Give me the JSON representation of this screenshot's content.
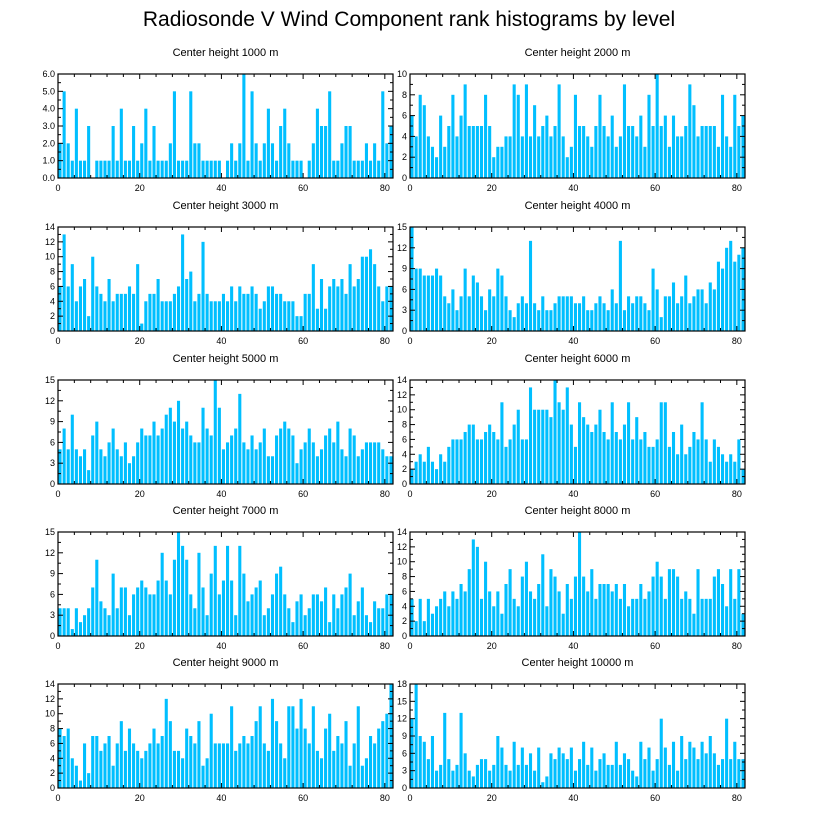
{
  "title": "Radiosonde V Wind Component rank histograms by level",
  "bar_color": "#00bfff",
  "chart_data": [
    {
      "type": "bar",
      "title": "Center height 1000 m",
      "xlim": [
        0,
        82
      ],
      "ylim": [
        0,
        6
      ],
      "xticks": [
        {
          "v": 0,
          "label": "0"
        },
        {
          "v": 20,
          "label": "20"
        },
        {
          "v": 40,
          "label": "40"
        },
        {
          "v": 60,
          "label": "60"
        },
        {
          "v": 80,
          "label": "80"
        }
      ],
      "yticks": [
        {
          "v": 0,
          "label": "0.0"
        },
        {
          "v": 1,
          "label": "1.0"
        },
        {
          "v": 2,
          "label": "2.0"
        },
        {
          "v": 3,
          "label": "3.0"
        },
        {
          "v": 4,
          "label": "4.0"
        },
        {
          "v": 5,
          "label": "5.0"
        },
        {
          "v": 6,
          "label": "6.0"
        }
      ],
      "values": [
        2,
        5,
        2,
        1,
        4,
        1,
        1,
        3,
        0,
        1,
        1,
        1,
        1,
        3,
        1,
        4,
        1,
        1,
        3,
        1,
        2,
        4,
        1,
        3,
        1,
        1,
        1,
        2,
        5,
        1,
        1,
        1,
        5,
        2,
        2,
        1,
        1,
        1,
        1,
        1,
        0,
        1,
        2,
        1,
        2,
        6,
        1,
        5,
        2,
        1,
        2,
        4,
        2,
        1,
        3,
        4,
        2,
        1,
        1,
        1,
        0,
        1,
        2,
        4,
        3,
        3,
        5,
        1,
        1,
        2,
        3,
        3,
        1,
        1,
        1,
        2,
        1,
        2,
        1,
        5,
        2,
        3
      ]
    },
    {
      "type": "bar",
      "title": "Center height 2000 m",
      "xlim": [
        0,
        82
      ],
      "ylim": [
        0,
        10
      ],
      "xticks": [
        {
          "v": 0,
          "label": "0"
        },
        {
          "v": 20,
          "label": "20"
        },
        {
          "v": 40,
          "label": "40"
        },
        {
          "v": 60,
          "label": "60"
        },
        {
          "v": 80,
          "label": "80"
        }
      ],
      "yticks": [
        {
          "v": 0,
          "label": "0"
        },
        {
          "v": 2,
          "label": "2"
        },
        {
          "v": 4,
          "label": "4"
        },
        {
          "v": 6,
          "label": "6"
        },
        {
          "v": 8,
          "label": "8"
        },
        {
          "v": 10,
          "label": "10"
        }
      ],
      "values": [
        6,
        4,
        8,
        7,
        4,
        3,
        2,
        6,
        3,
        5,
        8,
        4,
        6,
        9,
        5,
        5,
        5,
        5,
        8,
        5,
        2,
        3,
        3,
        4,
        4,
        9,
        8,
        4,
        9,
        4,
        7,
        4,
        5,
        6,
        4,
        5,
        9,
        4,
        2,
        3,
        8,
        5,
        5,
        4,
        3,
        5,
        8,
        5,
        4,
        6,
        3,
        4,
        9,
        5,
        5,
        4,
        6,
        3,
        8,
        5,
        10,
        5,
        6,
        3,
        6,
        4,
        4,
        5,
        9,
        7,
        4,
        5,
        5,
        5,
        5,
        3,
        8,
        4,
        3,
        8,
        5,
        6
      ]
    },
    {
      "type": "bar",
      "title": "Center height 3000 m",
      "xlim": [
        0,
        82
      ],
      "ylim": [
        0,
        14
      ],
      "xticks": [
        {
          "v": 0,
          "label": "0"
        },
        {
          "v": 20,
          "label": "20"
        },
        {
          "v": 40,
          "label": "40"
        },
        {
          "v": 60,
          "label": "60"
        },
        {
          "v": 80,
          "label": "80"
        }
      ],
      "yticks": [
        {
          "v": 0,
          "label": "0"
        },
        {
          "v": 2,
          "label": "2"
        },
        {
          "v": 4,
          "label": "4"
        },
        {
          "v": 6,
          "label": "6"
        },
        {
          "v": 8,
          "label": "8"
        },
        {
          "v": 10,
          "label": "10"
        },
        {
          "v": 12,
          "label": "12"
        },
        {
          "v": 14,
          "label": "14"
        }
      ],
      "values": [
        6,
        13,
        6,
        9,
        4,
        6,
        7,
        2,
        10,
        6,
        5,
        4,
        7,
        4,
        5,
        5,
        5,
        6,
        5,
        9,
        1,
        4,
        5,
        5,
        7,
        4,
        4,
        4,
        5,
        6,
        13,
        7,
        8,
        4,
        5,
        12,
        5,
        4,
        4,
        4,
        5,
        4,
        6,
        4,
        6,
        5,
        5,
        6,
        5,
        3,
        4,
        6,
        6,
        5,
        5,
        4,
        4,
        4,
        2,
        2,
        5,
        5,
        9,
        3,
        7,
        3,
        6,
        7,
        6,
        7,
        5,
        9,
        6,
        7,
        10,
        10,
        11,
        9,
        6,
        4,
        6,
        6
      ]
    },
    {
      "type": "bar",
      "title": "Center height 4000 m",
      "xlim": [
        0,
        82
      ],
      "ylim": [
        0,
        15
      ],
      "xticks": [
        {
          "v": 0,
          "label": "0"
        },
        {
          "v": 20,
          "label": "20"
        },
        {
          "v": 40,
          "label": "40"
        },
        {
          "v": 60,
          "label": "60"
        },
        {
          "v": 80,
          "label": "80"
        }
      ],
      "yticks": [
        {
          "v": 0,
          "label": "0"
        },
        {
          "v": 3,
          "label": "3"
        },
        {
          "v": 6,
          "label": "6"
        },
        {
          "v": 9,
          "label": "9"
        },
        {
          "v": 12,
          "label": "12"
        },
        {
          "v": 15,
          "label": "15"
        }
      ],
      "values": [
        15,
        9,
        9,
        8,
        8,
        8,
        9,
        8,
        5,
        4,
        6,
        3,
        5,
        9,
        5,
        8,
        7,
        5,
        3,
        6,
        5,
        9,
        8,
        5,
        3,
        2,
        4,
        5,
        4,
        13,
        4,
        3,
        5,
        3,
        3,
        4,
        5,
        5,
        5,
        5,
        4,
        4,
        5,
        3,
        3,
        4,
        5,
        4,
        3,
        6,
        4,
        13,
        3,
        5,
        4,
        5,
        5,
        4,
        3,
        9,
        6,
        2,
        5,
        5,
        7,
        4,
        5,
        8,
        4,
        5,
        6,
        6,
        4,
        7,
        6,
        10,
        9,
        12,
        13,
        10,
        11,
        12
      ]
    },
    {
      "type": "bar",
      "title": "Center height 5000 m",
      "xlim": [
        0,
        82
      ],
      "ylim": [
        0,
        15
      ],
      "xticks": [
        {
          "v": 0,
          "label": "0"
        },
        {
          "v": 20,
          "label": "20"
        },
        {
          "v": 40,
          "label": "40"
        },
        {
          "v": 60,
          "label": "60"
        },
        {
          "v": 80,
          "label": "80"
        }
      ],
      "yticks": [
        {
          "v": 0,
          "label": "0"
        },
        {
          "v": 3,
          "label": "3"
        },
        {
          "v": 6,
          "label": "6"
        },
        {
          "v": 9,
          "label": "9"
        },
        {
          "v": 12,
          "label": "12"
        },
        {
          "v": 15,
          "label": "15"
        }
      ],
      "values": [
        5,
        8,
        5,
        10,
        5,
        4,
        5,
        2,
        7,
        9,
        5,
        4,
        6,
        8,
        5,
        4,
        6,
        3,
        4,
        6,
        8,
        7,
        7,
        9,
        7,
        8,
        10,
        11,
        9,
        12,
        8,
        9,
        7,
        6,
        6,
        11,
        8,
        7,
        15,
        11,
        5,
        6,
        7,
        8,
        13,
        6,
        5,
        7,
        5,
        6,
        8,
        4,
        4,
        7,
        8,
        9,
        8,
        7,
        3,
        5,
        6,
        8,
        6,
        4,
        5,
        7,
        8,
        6,
        9,
        5,
        4,
        8,
        7,
        4,
        5,
        6,
        6,
        6,
        6,
        5,
        4,
        4
      ]
    },
    {
      "type": "bar",
      "title": "Center height 6000 m",
      "xlim": [
        0,
        82
      ],
      "ylim": [
        0,
        14
      ],
      "xticks": [
        {
          "v": 0,
          "label": "0"
        },
        {
          "v": 20,
          "label": "20"
        },
        {
          "v": 40,
          "label": "40"
        },
        {
          "v": 60,
          "label": "60"
        },
        {
          "v": 80,
          "label": "80"
        }
      ],
      "yticks": [
        {
          "v": 0,
          "label": "0"
        },
        {
          "v": 2,
          "label": "2"
        },
        {
          "v": 4,
          "label": "4"
        },
        {
          "v": 6,
          "label": "6"
        },
        {
          "v": 8,
          "label": "8"
        },
        {
          "v": 10,
          "label": "10"
        },
        {
          "v": 12,
          "label": "12"
        },
        {
          "v": 14,
          "label": "14"
        }
      ],
      "values": [
        2,
        3,
        4,
        3,
        5,
        3,
        2,
        4,
        3,
        5,
        6,
        6,
        6,
        7,
        8,
        8,
        6,
        6,
        7,
        8,
        7,
        6,
        11,
        5,
        6,
        8,
        10,
        6,
        6,
        13,
        10,
        10,
        10,
        10,
        9,
        14,
        11,
        10,
        13,
        8,
        5,
        11,
        9,
        8,
        7,
        8,
        10,
        7,
        6,
        11,
        7,
        6,
        8,
        11,
        6,
        9,
        6,
        7,
        5,
        5,
        6,
        11,
        11,
        5,
        7,
        4,
        8,
        4,
        5,
        7,
        6,
        11,
        6,
        3,
        6,
        5,
        4,
        3,
        4,
        3,
        6,
        2
      ]
    },
    {
      "type": "bar",
      "title": "Center height 7000 m",
      "xlim": [
        0,
        82
      ],
      "ylim": [
        0,
        15
      ],
      "xticks": [
        {
          "v": 0,
          "label": "0"
        },
        {
          "v": 20,
          "label": "20"
        },
        {
          "v": 40,
          "label": "40"
        },
        {
          "v": 60,
          "label": "60"
        },
        {
          "v": 80,
          "label": "80"
        }
      ],
      "yticks": [
        {
          "v": 0,
          "label": "0"
        },
        {
          "v": 3,
          "label": "3"
        },
        {
          "v": 6,
          "label": "6"
        },
        {
          "v": 9,
          "label": "9"
        },
        {
          "v": 12,
          "label": "12"
        },
        {
          "v": 15,
          "label": "15"
        }
      ],
      "values": [
        4,
        4,
        4,
        1,
        4,
        2,
        3,
        4,
        7,
        11,
        5,
        4,
        3,
        9,
        4,
        7,
        7,
        3,
        6,
        7,
        8,
        7,
        6,
        6,
        8,
        12,
        8,
        6,
        11,
        15,
        13,
        11,
        6,
        4,
        12,
        7,
        3,
        9,
        13,
        6,
        8,
        13,
        8,
        3,
        13,
        9,
        5,
        6,
        7,
        8,
        3,
        4,
        6,
        9,
        10,
        6,
        4,
        2,
        5,
        6,
        3,
        4,
        6,
        6,
        5,
        7,
        2,
        6,
        4,
        6,
        7,
        9,
        3,
        5,
        7,
        3,
        2,
        5,
        4,
        4,
        6,
        6
      ]
    },
    {
      "type": "bar",
      "title": "Center height 8000 m",
      "xlim": [
        0,
        82
      ],
      "ylim": [
        0,
        14
      ],
      "xticks": [
        {
          "v": 0,
          "label": "0"
        },
        {
          "v": 20,
          "label": "20"
        },
        {
          "v": 40,
          "label": "40"
        },
        {
          "v": 60,
          "label": "60"
        },
        {
          "v": 80,
          "label": "80"
        }
      ],
      "yticks": [
        {
          "v": 0,
          "label": "0"
        },
        {
          "v": 2,
          "label": "2"
        },
        {
          "v": 4,
          "label": "4"
        },
        {
          "v": 6,
          "label": "6"
        },
        {
          "v": 8,
          "label": "8"
        },
        {
          "v": 10,
          "label": "10"
        },
        {
          "v": 12,
          "label": "12"
        },
        {
          "v": 14,
          "label": "14"
        }
      ],
      "values": [
        5,
        2,
        5,
        2,
        5,
        3,
        4,
        5,
        6,
        4,
        6,
        5,
        7,
        6,
        9,
        13,
        12,
        5,
        10,
        6,
        4,
        6,
        3,
        7,
        9,
        5,
        4,
        8,
        10,
        6,
        5,
        7,
        11,
        4,
        9,
        8,
        6,
        3,
        7,
        5,
        8,
        14,
        8,
        6,
        9,
        5,
        7,
        7,
        7,
        6,
        7,
        5,
        7,
        4,
        5,
        5,
        7,
        5,
        6,
        8,
        10,
        8,
        5,
        9,
        9,
        8,
        5,
        6,
        5,
        3,
        9,
        5,
        5,
        5,
        8,
        9,
        7,
        4,
        9,
        5,
        9,
        3
      ]
    },
    {
      "type": "bar",
      "title": "Center height 9000 m",
      "xlim": [
        0,
        82
      ],
      "ylim": [
        0,
        14
      ],
      "xticks": [
        {
          "v": 0,
          "label": "0"
        },
        {
          "v": 20,
          "label": "20"
        },
        {
          "v": 40,
          "label": "40"
        },
        {
          "v": 60,
          "label": "60"
        },
        {
          "v": 80,
          "label": "80"
        }
      ],
      "yticks": [
        {
          "v": 0,
          "label": "0"
        },
        {
          "v": 2,
          "label": "2"
        },
        {
          "v": 4,
          "label": "4"
        },
        {
          "v": 6,
          "label": "6"
        },
        {
          "v": 8,
          "label": "8"
        },
        {
          "v": 10,
          "label": "10"
        },
        {
          "v": 12,
          "label": "12"
        },
        {
          "v": 14,
          "label": "14"
        }
      ],
      "values": [
        8,
        7,
        8,
        4,
        3,
        1,
        6,
        2,
        7,
        7,
        5,
        6,
        7,
        3,
        6,
        9,
        5,
        8,
        6,
        5,
        4,
        5,
        6,
        8,
        6,
        7,
        12,
        9,
        5,
        5,
        4,
        8,
        7,
        6,
        9,
        3,
        4,
        10,
        6,
        6,
        6,
        6,
        11,
        5,
        6,
        7,
        6,
        7,
        9,
        11,
        6,
        5,
        12,
        9,
        6,
        4,
        11,
        11,
        8,
        12,
        8,
        6,
        11,
        5,
        4,
        8,
        10,
        5,
        7,
        6,
        9,
        3,
        6,
        11,
        3,
        4,
        7,
        6,
        8,
        9,
        10,
        14
      ]
    },
    {
      "type": "bar",
      "title": "Center height 10000 m",
      "xlim": [
        0,
        82
      ],
      "ylim": [
        0,
        18
      ],
      "xticks": [
        {
          "v": 0,
          "label": "0"
        },
        {
          "v": 20,
          "label": "20"
        },
        {
          "v": 40,
          "label": "40"
        },
        {
          "v": 60,
          "label": "60"
        },
        {
          "v": 80,
          "label": "80"
        }
      ],
      "yticks": [
        {
          "v": 0,
          "label": "0"
        },
        {
          "v": 3,
          "label": "3"
        },
        {
          "v": 6,
          "label": "6"
        },
        {
          "v": 9,
          "label": "9"
        },
        {
          "v": 12,
          "label": "12"
        },
        {
          "v": 15,
          "label": "15"
        },
        {
          "v": 18,
          "label": "18"
        }
      ],
      "values": [
        12,
        18,
        9,
        8,
        5,
        9,
        3,
        4,
        13,
        5,
        3,
        4,
        13,
        6,
        3,
        2,
        4,
        5,
        5,
        3,
        4,
        9,
        7,
        4,
        3,
        8,
        4,
        7,
        4,
        6,
        3,
        7,
        1,
        2,
        6,
        5,
        7,
        6,
        5,
        7,
        3,
        5,
        8,
        4,
        7,
        3,
        5,
        6,
        4,
        4,
        8,
        4,
        6,
        5,
        3,
        2,
        8,
        5,
        7,
        3,
        5,
        12,
        7,
        4,
        8,
        3,
        9,
        5,
        8,
        7,
        5,
        8,
        6,
        9,
        6,
        4,
        5,
        12,
        5,
        8,
        5,
        5
      ]
    }
  ]
}
